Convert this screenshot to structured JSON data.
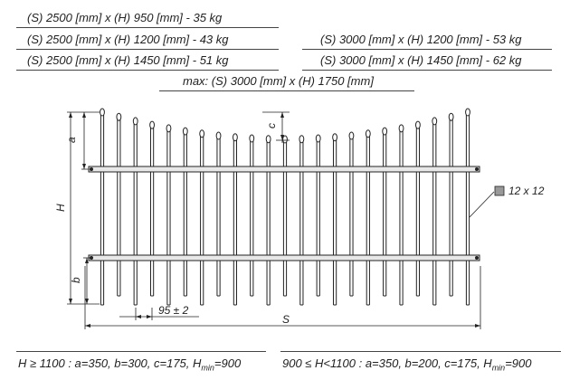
{
  "specs_left": [
    "(S) 2500 [mm] x (H) 950 [mm]   -  35 kg",
    "(S) 2500 [mm] x (H) 1200 [mm]  -  43 kg",
    "(S) 2500 [mm] x (H) 1450 [mm]  -  51 kg"
  ],
  "specs_right": [
    "(S) 3000 [mm] x (H) 1200 [mm]  -  53 kg",
    "(S) 3000 [mm] x (H) 1450 [mm]  -  62 kg"
  ],
  "max_spec": "max: (S) 3000 [mm] x (H) 1750 [mm]",
  "labels": {
    "a": "a",
    "b": "b",
    "c": "c",
    "H": "H",
    "S": "S",
    "spacing": "95 ± 2",
    "profile": "12 x 12"
  },
  "footnote_left": {
    "main": "H ≥ 1100 : a=350, b=300, c=175, H",
    "sub": "min",
    "end": "=900"
  },
  "footnote_right": {
    "main": "900 ≤ H<1100 : a=350, b=200, c=175, H",
    "sub": "min",
    "end": "=900"
  },
  "colors": {
    "line": "#222222",
    "rail": "#e8e8e8",
    "profile_swatch": "#999999"
  }
}
